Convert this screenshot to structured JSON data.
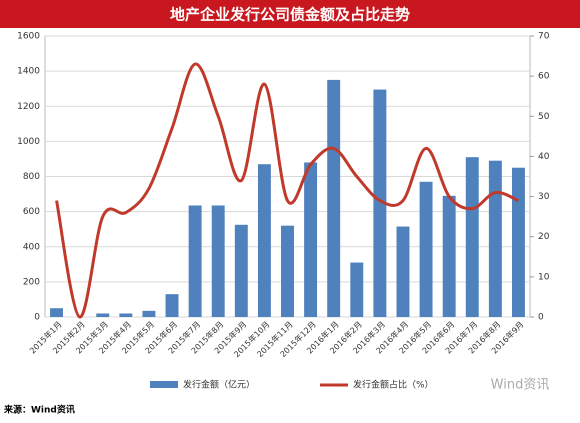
{
  "chart_data": {
    "type": "bar-line",
    "title": "地产企业发行公司债金额及占比走势",
    "categories": [
      "2015年1月",
      "2015年2月",
      "2015年3月",
      "2015年4月",
      "2015年5月",
      "2015年6月",
      "2015年7月",
      "2015年8月",
      "2015年9月",
      "2015年10月",
      "2015年11月",
      "2015年12月",
      "2016年1月",
      "2016年2月",
      "2016年3月",
      "2016年4月",
      "2016年5月",
      "2016年6月",
      "2016年7月",
      "2016年8月",
      "2016年9月"
    ],
    "series": [
      {
        "name": "发行金额（亿元）",
        "kind": "bar",
        "color": "#4f81bd",
        "values": [
          50,
          0,
          20,
          20,
          35,
          130,
          635,
          635,
          525,
          870,
          520,
          880,
          1350,
          310,
          1295,
          515,
          770,
          690,
          910,
          890,
          850
        ]
      },
      {
        "name": "发行金额占比（%）",
        "kind": "line",
        "axis": "y2",
        "color": "#c0392b",
        "values": [
          29,
          0,
          25,
          26,
          32,
          47,
          63,
          50,
          34,
          58,
          29,
          38,
          42,
          35,
          29,
          29,
          42,
          30,
          27,
          31,
          29
        ]
      }
    ],
    "ylim": [
      0,
      1600
    ],
    "yticks": [
      0,
      200,
      400,
      600,
      800,
      1000,
      1200,
      1400,
      1600
    ],
    "y2lim": [
      0,
      70
    ],
    "y2ticks": [
      0,
      10,
      20,
      30,
      40,
      50,
      60,
      70
    ],
    "grid": true,
    "source": "来源：Wind资讯",
    "logo": "Wind资讯"
  }
}
